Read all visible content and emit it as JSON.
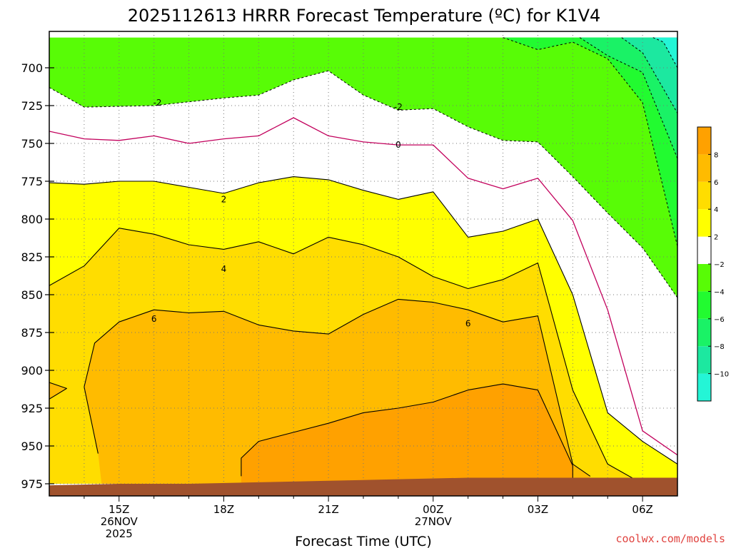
{
  "chart_data": {
    "type": "contour",
    "title": "2025112613 HRRR Forecast Temperature (ºC) for K1V4",
    "xlabel": "Forecast Time (UTC)",
    "credit": "coolwx.com/models",
    "x_ticks": [
      {
        "label": "15Z",
        "sub": [
          "26NOV",
          "2025"
        ],
        "hour": 2
      },
      {
        "label": "18Z",
        "sub": [],
        "hour": 5
      },
      {
        "label": "21Z",
        "sub": [],
        "hour": 8
      },
      {
        "label": "00Z",
        "sub": [
          "27NOV"
        ],
        "hour": 11
      },
      {
        "label": "03Z",
        "sub": [],
        "hour": 14
      },
      {
        "label": "06Z",
        "sub": [],
        "hour": 17
      }
    ],
    "xlim_hours": [
      0,
      18
    ],
    "y_ticks": [
      700,
      725,
      750,
      775,
      800,
      825,
      850,
      875,
      900,
      925,
      950,
      975
    ],
    "ylim": [
      680,
      980
    ],
    "grid": true,
    "colorbar": {
      "bins": [
        {
          "lo": -12,
          "hi": -10,
          "color": "#24f5d6"
        },
        {
          "lo": -10,
          "hi": -8,
          "color": "#1ce8a0"
        },
        {
          "lo": -8,
          "hi": -6,
          "color": "#1af266"
        },
        {
          "lo": -6,
          "hi": -4,
          "color": "#22fb30"
        },
        {
          "lo": -4,
          "hi": -2,
          "color": "#58fc06"
        },
        {
          "lo": -2,
          "hi": 2,
          "color": "#ffffff"
        },
        {
          "lo": 2,
          "hi": 4,
          "color": "#ffff00"
        },
        {
          "lo": 4,
          "hi": 6,
          "color": "#ffdd00"
        },
        {
          "lo": 6,
          "hi": 8,
          "color": "#ffbb00"
        },
        {
          "lo": 8,
          "hi": 10,
          "color": "#ffa100"
        }
      ],
      "labels": [
        -10,
        -8,
        -6,
        -4,
        -2,
        2,
        4,
        6,
        8
      ]
    },
    "contour_labels": [
      {
        "text": "-2",
        "hour": 3.1,
        "p": 723
      },
      {
        "text": "-2",
        "hour": 10.0,
        "p": 726
      },
      {
        "text": "0",
        "hour": 10.0,
        "p": 751
      },
      {
        "text": "2",
        "hour": 5.0,
        "p": 787
      },
      {
        "text": "4",
        "hour": 5.0,
        "p": 833
      },
      {
        "text": "6",
        "hour": 3.0,
        "p": 866
      },
      {
        "text": "6",
        "hour": 12.0,
        "p": 869
      }
    ],
    "regions": [
      {
        "level": "green_-4_-2",
        "color": "#58fc06",
        "pts": [
          [
            0,
            680
          ],
          [
            18,
            680
          ],
          [
            18,
            975
          ],
          [
            0,
            975
          ]
        ]
      },
      {
        "level": "white_-2_2",
        "color": "#ffffff",
        "pts": [
          [
            0,
            713
          ],
          [
            1,
            726
          ],
          [
            3,
            725
          ],
          [
            5,
            720
          ],
          [
            6,
            718
          ],
          [
            7,
            708
          ],
          [
            8,
            702
          ],
          [
            9,
            718
          ],
          [
            10,
            728
          ],
          [
            11,
            727
          ],
          [
            12,
            739
          ],
          [
            13,
            748
          ],
          [
            14,
            749
          ],
          [
            15,
            772
          ],
          [
            16,
            796
          ],
          [
            17,
            819
          ],
          [
            18,
            852
          ],
          [
            18,
            975
          ],
          [
            0,
            975
          ]
        ]
      },
      {
        "level": "yellow_2_4",
        "color": "#ffff00",
        "pts": [
          [
            0,
            776
          ],
          [
            1,
            777
          ],
          [
            2,
            775
          ],
          [
            3,
            775
          ],
          [
            4,
            779
          ],
          [
            5,
            783
          ],
          [
            6,
            776
          ],
          [
            7,
            772
          ],
          [
            8,
            774
          ],
          [
            9,
            781
          ],
          [
            10,
            787
          ],
          [
            11,
            782
          ],
          [
            12,
            812
          ],
          [
            13,
            808
          ],
          [
            14,
            800
          ],
          [
            15,
            850
          ],
          [
            16,
            928
          ],
          [
            17,
            947
          ],
          [
            18,
            962
          ],
          [
            18,
            975
          ],
          [
            0,
            975
          ]
        ]
      },
      {
        "level": "gold_4_6",
        "color": "#ffdd00",
        "pts": [
          [
            0,
            844
          ],
          [
            1,
            831
          ],
          [
            2,
            806
          ],
          [
            3,
            810
          ],
          [
            4,
            817
          ],
          [
            5,
            820
          ],
          [
            6,
            815
          ],
          [
            7,
            823
          ],
          [
            8,
            812
          ],
          [
            9,
            817
          ],
          [
            10,
            825
          ],
          [
            11,
            838
          ],
          [
            12,
            846
          ],
          [
            13,
            840
          ],
          [
            14,
            829
          ],
          [
            15,
            913
          ],
          [
            16,
            962
          ],
          [
            17,
            975
          ],
          [
            0,
            975
          ]
        ]
      },
      {
        "level": "orange_6_8",
        "color": "#ffbb00",
        "pts": [
          [
            0,
            975
          ],
          [
            0,
            908
          ],
          [
            0.5,
            912
          ],
          [
            0,
            919
          ],
          [
            0,
            975
          ]
        ]
      },
      {
        "level": "orange_6_8",
        "color": "#ffbb00",
        "pts": [
          [
            1.4,
            955
          ],
          [
            1,
            911
          ],
          [
            1.3,
            882
          ],
          [
            2,
            868
          ],
          [
            3,
            860
          ],
          [
            4,
            862
          ],
          [
            5,
            861
          ],
          [
            6,
            870
          ],
          [
            7,
            874
          ],
          [
            8,
            876
          ],
          [
            9,
            863
          ],
          [
            10,
            853
          ],
          [
            11,
            855
          ],
          [
            12,
            860
          ],
          [
            13,
            868
          ],
          [
            14,
            864
          ],
          [
            15,
            962
          ],
          [
            15.5,
            970
          ],
          [
            15.5,
            975
          ],
          [
            1.5,
            975
          ]
        ]
      },
      {
        "level": "darkorange_8_10",
        "color": "#ffa100",
        "pts": [
          [
            5.5,
            975
          ],
          [
            5.5,
            958
          ],
          [
            6,
            947
          ],
          [
            7,
            941
          ],
          [
            8,
            935
          ],
          [
            9,
            928
          ],
          [
            10,
            925
          ],
          [
            11,
            921
          ],
          [
            12,
            913
          ],
          [
            13,
            909
          ],
          [
            14,
            913
          ],
          [
            15,
            963
          ],
          [
            15,
            973
          ],
          [
            5.5,
            975
          ]
        ]
      },
      {
        "level": "cyan_-6_-4",
        "color": "#22fb30",
        "pts": [
          [
            13,
            680
          ],
          [
            14,
            688
          ],
          [
            15,
            683
          ],
          [
            16,
            694
          ],
          [
            17,
            723
          ],
          [
            18,
            818
          ],
          [
            18,
            680
          ]
        ]
      },
      {
        "level": "cyan_-8_-6",
        "color": "#1af266",
        "pts": [
          [
            15.2,
            680
          ],
          [
            16,
            692
          ],
          [
            17,
            703
          ],
          [
            18,
            760
          ],
          [
            18,
            680
          ]
        ]
      },
      {
        "level": "cyan_-10_-8",
        "color": "#1ce8a0",
        "pts": [
          [
            16.4,
            680
          ],
          [
            17,
            690
          ],
          [
            18,
            730
          ],
          [
            18,
            680
          ]
        ]
      },
      {
        "level": "cyan_-12_-10",
        "color": "#24f5d6",
        "pts": [
          [
            17.3,
            680
          ],
          [
            17.6,
            683
          ],
          [
            18,
            700
          ],
          [
            18,
            680
          ]
        ]
      }
    ],
    "lines": [
      {
        "level": -2,
        "color": "#000000",
        "dash": "3,3",
        "width": 1,
        "pts": [
          [
            0,
            713
          ],
          [
            1,
            726
          ],
          [
            3,
            725
          ],
          [
            5,
            720
          ],
          [
            6,
            718
          ],
          [
            7,
            708
          ],
          [
            8,
            702
          ],
          [
            9,
            718
          ],
          [
            10,
            728
          ],
          [
            11,
            727
          ],
          [
            12,
            739
          ],
          [
            13,
            748
          ],
          [
            14,
            749
          ],
          [
            15,
            772
          ],
          [
            16,
            796
          ],
          [
            17,
            819
          ],
          [
            18,
            852
          ]
        ]
      },
      {
        "level": -4,
        "color": "#000000",
        "dash": "3,3",
        "width": 1,
        "pts": [
          [
            13,
            680
          ],
          [
            14,
            688
          ],
          [
            15,
            683
          ],
          [
            16,
            694
          ],
          [
            17,
            723
          ],
          [
            18,
            818
          ]
        ]
      },
      {
        "level": -6,
        "color": "#000000",
        "dash": "3,3",
        "width": 1,
        "pts": [
          [
            15.2,
            680
          ],
          [
            16,
            692
          ],
          [
            17,
            703
          ],
          [
            18,
            760
          ]
        ]
      },
      {
        "level": -8,
        "color": "#000000",
        "dash": "3,3",
        "width": 1,
        "pts": [
          [
            16.4,
            680
          ],
          [
            17,
            690
          ],
          [
            18,
            730
          ]
        ]
      },
      {
        "level": -10,
        "color": "#000000",
        "dash": "3,3",
        "width": 1,
        "pts": [
          [
            17.3,
            680
          ],
          [
            17.6,
            683
          ],
          [
            18,
            700
          ]
        ]
      },
      {
        "level": 0,
        "color": "#c2005c",
        "dash": "",
        "width": 1.3,
        "pts": [
          [
            0,
            742
          ],
          [
            1,
            747
          ],
          [
            2,
            748
          ],
          [
            3,
            745
          ],
          [
            4,
            750
          ],
          [
            5,
            747
          ],
          [
            6,
            745
          ],
          [
            7,
            733
          ],
          [
            8,
            745
          ],
          [
            9,
            749
          ],
          [
            10,
            751
          ],
          [
            11,
            751
          ],
          [
            12,
            773
          ],
          [
            13,
            780
          ],
          [
            14,
            773
          ],
          [
            15,
            801
          ],
          [
            16,
            860
          ],
          [
            17,
            940
          ],
          [
            18,
            956
          ]
        ]
      },
      {
        "level": 2,
        "color": "#000000",
        "dash": "",
        "width": 1.1,
        "pts": [
          [
            0,
            776
          ],
          [
            1,
            777
          ],
          [
            2,
            775
          ],
          [
            3,
            775
          ],
          [
            4,
            779
          ],
          [
            5,
            783
          ],
          [
            6,
            776
          ],
          [
            7,
            772
          ],
          [
            8,
            774
          ],
          [
            9,
            781
          ],
          [
            10,
            787
          ],
          [
            11,
            782
          ],
          [
            12,
            812
          ],
          [
            13,
            808
          ],
          [
            14,
            800
          ],
          [
            15,
            850
          ],
          [
            16,
            928
          ],
          [
            17,
            947
          ],
          [
            18,
            962
          ]
        ]
      },
      {
        "level": 4,
        "color": "#000000",
        "dash": "",
        "width": 1.1,
        "pts": [
          [
            0,
            844
          ],
          [
            1,
            831
          ],
          [
            2,
            806
          ],
          [
            3,
            810
          ],
          [
            4,
            817
          ],
          [
            5,
            820
          ],
          [
            6,
            815
          ],
          [
            7,
            823
          ],
          [
            8,
            812
          ],
          [
            9,
            817
          ],
          [
            10,
            825
          ],
          [
            11,
            838
          ],
          [
            12,
            846
          ],
          [
            13,
            840
          ],
          [
            14,
            829
          ],
          [
            15,
            913
          ],
          [
            16,
            962
          ],
          [
            17,
            975
          ]
        ]
      },
      {
        "level": 6,
        "color": "#000000",
        "dash": "",
        "width": 1.1,
        "pts": [
          [
            1.4,
            955
          ],
          [
            1,
            911
          ],
          [
            1.3,
            882
          ],
          [
            2,
            868
          ],
          [
            3,
            860
          ],
          [
            4,
            862
          ],
          [
            5,
            861
          ],
          [
            6,
            870
          ],
          [
            7,
            874
          ],
          [
            8,
            876
          ],
          [
            9,
            863
          ],
          [
            10,
            853
          ],
          [
            11,
            855
          ],
          [
            12,
            860
          ],
          [
            13,
            868
          ],
          [
            14,
            864
          ],
          [
            15,
            962
          ],
          [
            15.5,
            970
          ]
        ]
      },
      {
        "level": 6,
        "color": "#000000",
        "dash": "",
        "width": 1.1,
        "pts": [
          [
            0,
            908
          ],
          [
            0.5,
            912
          ],
          [
            0,
            919
          ]
        ]
      },
      {
        "level": 8,
        "color": "#000000",
        "dash": "",
        "width": 1.1,
        "pts": [
          [
            5.5,
            970
          ],
          [
            5.5,
            958
          ],
          [
            6,
            947
          ],
          [
            7,
            941
          ],
          [
            8,
            935
          ],
          [
            9,
            928
          ],
          [
            10,
            925
          ],
          [
            11,
            921
          ],
          [
            12,
            913
          ],
          [
            13,
            909
          ],
          [
            14,
            913
          ],
          [
            15,
            963
          ],
          [
            15,
            973
          ]
        ]
      }
    ],
    "terrain": {
      "color": "#a0522d",
      "pts": [
        [
          0,
          976
        ],
        [
          2,
          975
        ],
        [
          4,
          975
        ],
        [
          6,
          974
        ],
        [
          8,
          973
        ],
        [
          10,
          972
        ],
        [
          12,
          971
        ],
        [
          14,
          971
        ],
        [
          16,
          971
        ],
        [
          18,
          971
        ]
      ]
    }
  }
}
